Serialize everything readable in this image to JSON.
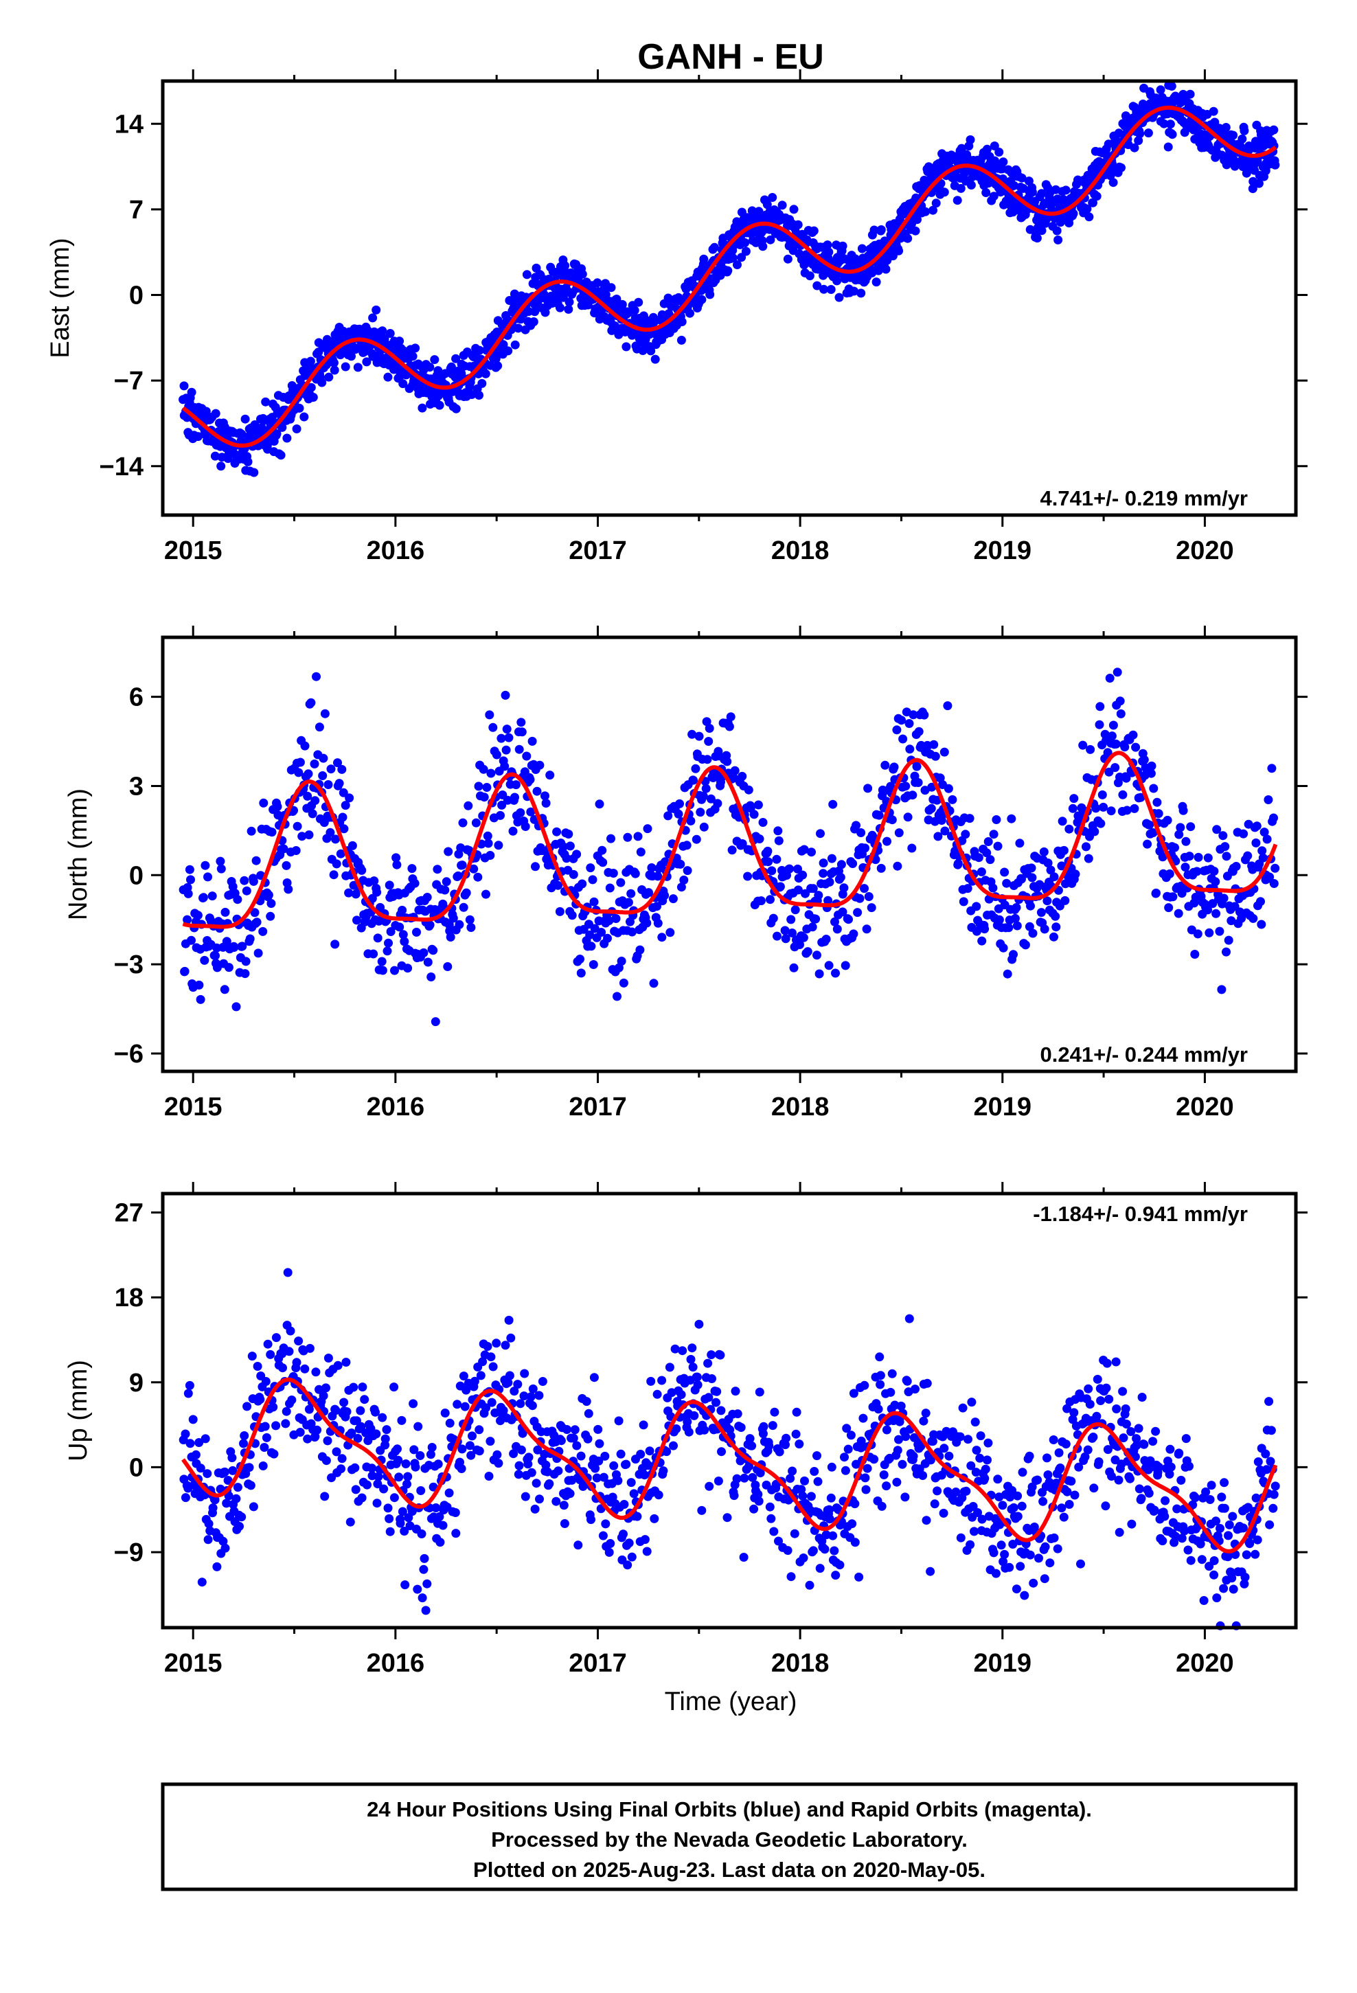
{
  "title": "GANH - EU",
  "xlabel": "Time (year)",
  "footer": [
    "24 Hour Positions Using Final Orbits (blue) and Rapid Orbits (magenta).",
    "Processed by the Nevada Geodetic Laboratory.",
    "Plotted on 2025-Aug-23. Last data on 2020-May-05."
  ],
  "colors": {
    "data": "#0000ff",
    "model": "#ff0000",
    "frame": "#000000"
  },
  "chart_data": [
    {
      "type": "scatter",
      "ylabel": "East (mm)",
      "rate_label": "4.741+/- 0.219 mm/yr",
      "xlim": [
        2014.85,
        2020.45
      ],
      "ylim": [
        -18,
        17.5
      ],
      "xticks": [
        2015,
        2016,
        2017,
        2018,
        2019,
        2020
      ],
      "yticks": [
        14,
        7,
        0,
        -7,
        -14
      ],
      "ytick_labels": [
        "14",
        "7",
        "0",
        "−7",
        "−14"
      ],
      "series": [
        {
          "name": "",
          "role": "daily positions",
          "model": {
            "t0": 2015.0,
            "x_start": 2014.95,
            "x_end": 2020.35,
            "offset": -10.5,
            "rate": 4.741,
            "annual_sin": -3.0,
            "annual_cos": 0.6,
            "semiannual_sin": 0.0,
            "semiannual_cos": 0.0
          },
          "scatter_sd": 1.0,
          "points_per_year": 340,
          "gaps": []
        },
        {
          "name": "",
          "role": "model fit",
          "x": [
            2014.95,
            2020.35
          ]
        }
      ]
    },
    {
      "type": "scatter",
      "ylabel": "North (mm)",
      "rate_label": "0.241+/- 0.244 mm/yr",
      "xlim": [
        2014.85,
        2020.45
      ],
      "ylim": [
        -6.6,
        8.0
      ],
      "xticks": [
        2015,
        2016,
        2017,
        2018,
        2019,
        2020
      ],
      "yticks": [
        6,
        3,
        0,
        -3,
        -6
      ],
      "ytick_labels": [
        "6",
        "3",
        "0",
        "−3",
        "−6"
      ],
      "series": [
        {
          "name": "",
          "role": "daily positions",
          "model": {
            "t0": 2015.0,
            "x_start": 2014.95,
            "x_end": 2020.35,
            "offset": 0.0,
            "rate": 0.241,
            "annual_sin": -1.1,
            "annual_cos": -2.1,
            "semiannual_sin": 0.5,
            "semiannual_cos": 0.4
          },
          "scatter_sd": 1.15,
          "points_per_year": 230,
          "gaps": []
        },
        {
          "name": "",
          "role": "model fit",
          "x": [
            2014.95,
            2020.35
          ]
        }
      ]
    },
    {
      "type": "scatter",
      "ylabel": "Up (mm)",
      "rate_label": "-1.184+/- 0.941 mm/yr",
      "xlim": [
        2014.85,
        2020.45
      ],
      "ylim": [
        -17,
        29
      ],
      "xticks": [
        2015,
        2016,
        2017,
        2018,
        2019,
        2020
      ],
      "yticks": [
        27,
        18,
        9,
        0,
        -9
      ],
      "ytick_labels": [
        "27",
        "18",
        "9",
        "0",
        "−9"
      ],
      "series": [
        {
          "name": "",
          "role": "daily positions",
          "model": {
            "t0": 2015.0,
            "x_start": 2014.95,
            "x_end": 2020.35,
            "offset": 3.5,
            "rate": -1.184,
            "annual_sin": -1.5,
            "annual_cos": -5.2,
            "semiannual_sin": -1.6,
            "semiannual_cos": 1.0
          },
          "scatter_sd": 3.8,
          "points_per_year": 230,
          "gaps": []
        },
        {
          "name": "",
          "role": "model fit",
          "x": [
            2014.95,
            2020.35
          ]
        }
      ]
    }
  ]
}
